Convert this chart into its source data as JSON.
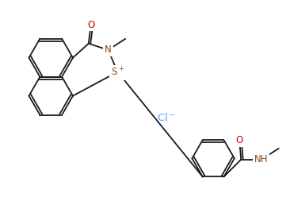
{
  "bg_color": "#ffffff",
  "line_color": "#1a1a1a",
  "atom_colors": {
    "O": "#cc0000",
    "N": "#8B4513",
    "S": "#8B4513",
    "Cl": "#4da6ff"
  },
  "figsize": [
    3.66,
    2.68
  ],
  "dpi": 100,
  "lw": 1.3,
  "font_size": 8.5
}
